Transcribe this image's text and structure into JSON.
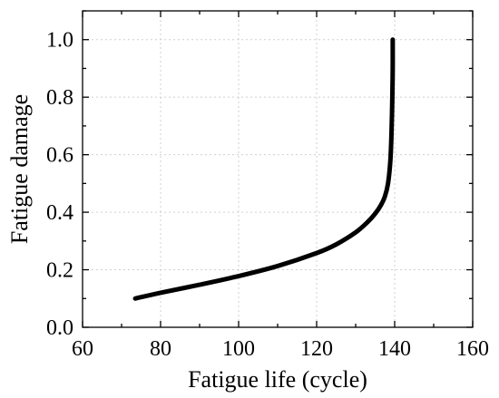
{
  "chart_data": {
    "type": "line",
    "title": "",
    "xlabel": "Fatigue life (cycle)",
    "ylabel": "Fatigue damage",
    "xlim": [
      60,
      160
    ],
    "ylim": [
      0.0,
      1.1
    ],
    "x_ticks": [
      "60",
      "80",
      "100",
      "120",
      "140",
      "160"
    ],
    "y_ticks": [
      "0.0",
      "0.2",
      "0.4",
      "0.6",
      "0.8",
      "1.0"
    ],
    "grid": true,
    "legend": "none",
    "series": [
      {
        "color": "#000000",
        "points": [
          [
            73.5,
            0.1
          ],
          [
            80,
            0.12
          ],
          [
            90,
            0.148
          ],
          [
            100,
            0.178
          ],
          [
            110,
            0.213
          ],
          [
            120,
            0.258
          ],
          [
            125,
            0.288
          ],
          [
            130,
            0.33
          ],
          [
            133,
            0.365
          ],
          [
            135,
            0.395
          ],
          [
            136.5,
            0.425
          ],
          [
            137.5,
            0.455
          ],
          [
            138.3,
            0.5
          ],
          [
            138.9,
            0.58
          ],
          [
            139.2,
            0.68
          ],
          [
            139.4,
            0.8
          ],
          [
            139.5,
            0.9
          ],
          [
            139.5,
            1.0
          ]
        ]
      }
    ]
  }
}
